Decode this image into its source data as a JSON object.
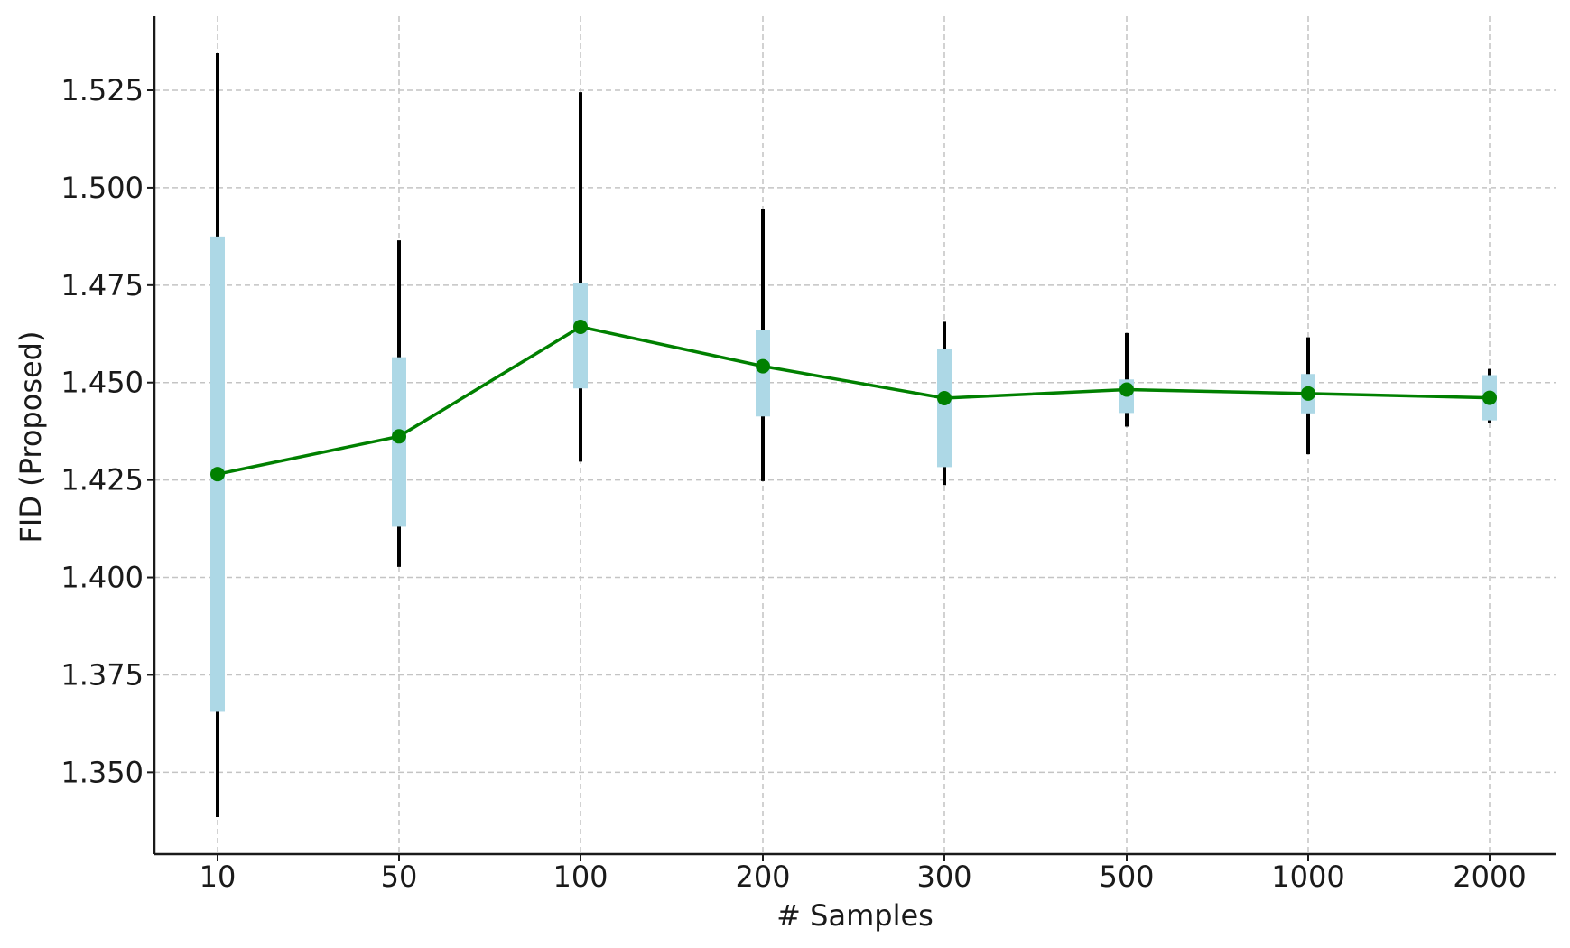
{
  "chart_data": {
    "type": "line",
    "title": "",
    "xlabel": "# Samples",
    "ylabel": "FID (Proposed)",
    "categories": [
      "10",
      "50",
      "100",
      "200",
      "300",
      "500",
      "1000",
      "2000"
    ],
    "ylim": [
      1.329,
      1.544
    ],
    "yticks": [
      "1.350",
      "1.375",
      "1.400",
      "1.425",
      "1.450",
      "1.475",
      "1.500",
      "1.525"
    ],
    "grid": true,
    "legend": "none",
    "series": [
      {
        "mean": [
          1.4265,
          1.4362,
          1.4643,
          1.4542,
          1.446,
          1.4482,
          1.4472,
          1.4461
        ],
        "band_low": [
          1.3655,
          1.413,
          1.4485,
          1.4413,
          1.4283,
          1.4422,
          1.4421,
          1.4403
        ],
        "band_high": [
          1.4875,
          1.4565,
          1.4755,
          1.4635,
          1.4587,
          1.4508,
          1.4522,
          1.4519
        ],
        "whisker_low": [
          1.3385,
          1.4027,
          1.4297,
          1.4247,
          1.4237,
          1.4387,
          1.4316,
          1.4397
        ],
        "whisker_high": [
          1.5345,
          1.4865,
          1.5245,
          1.4945,
          1.4656,
          1.4627,
          1.4616,
          1.4535
        ],
        "line_color": "#008000",
        "band_color": "#add8e6",
        "whisker_color": "#000000"
      }
    ]
  }
}
